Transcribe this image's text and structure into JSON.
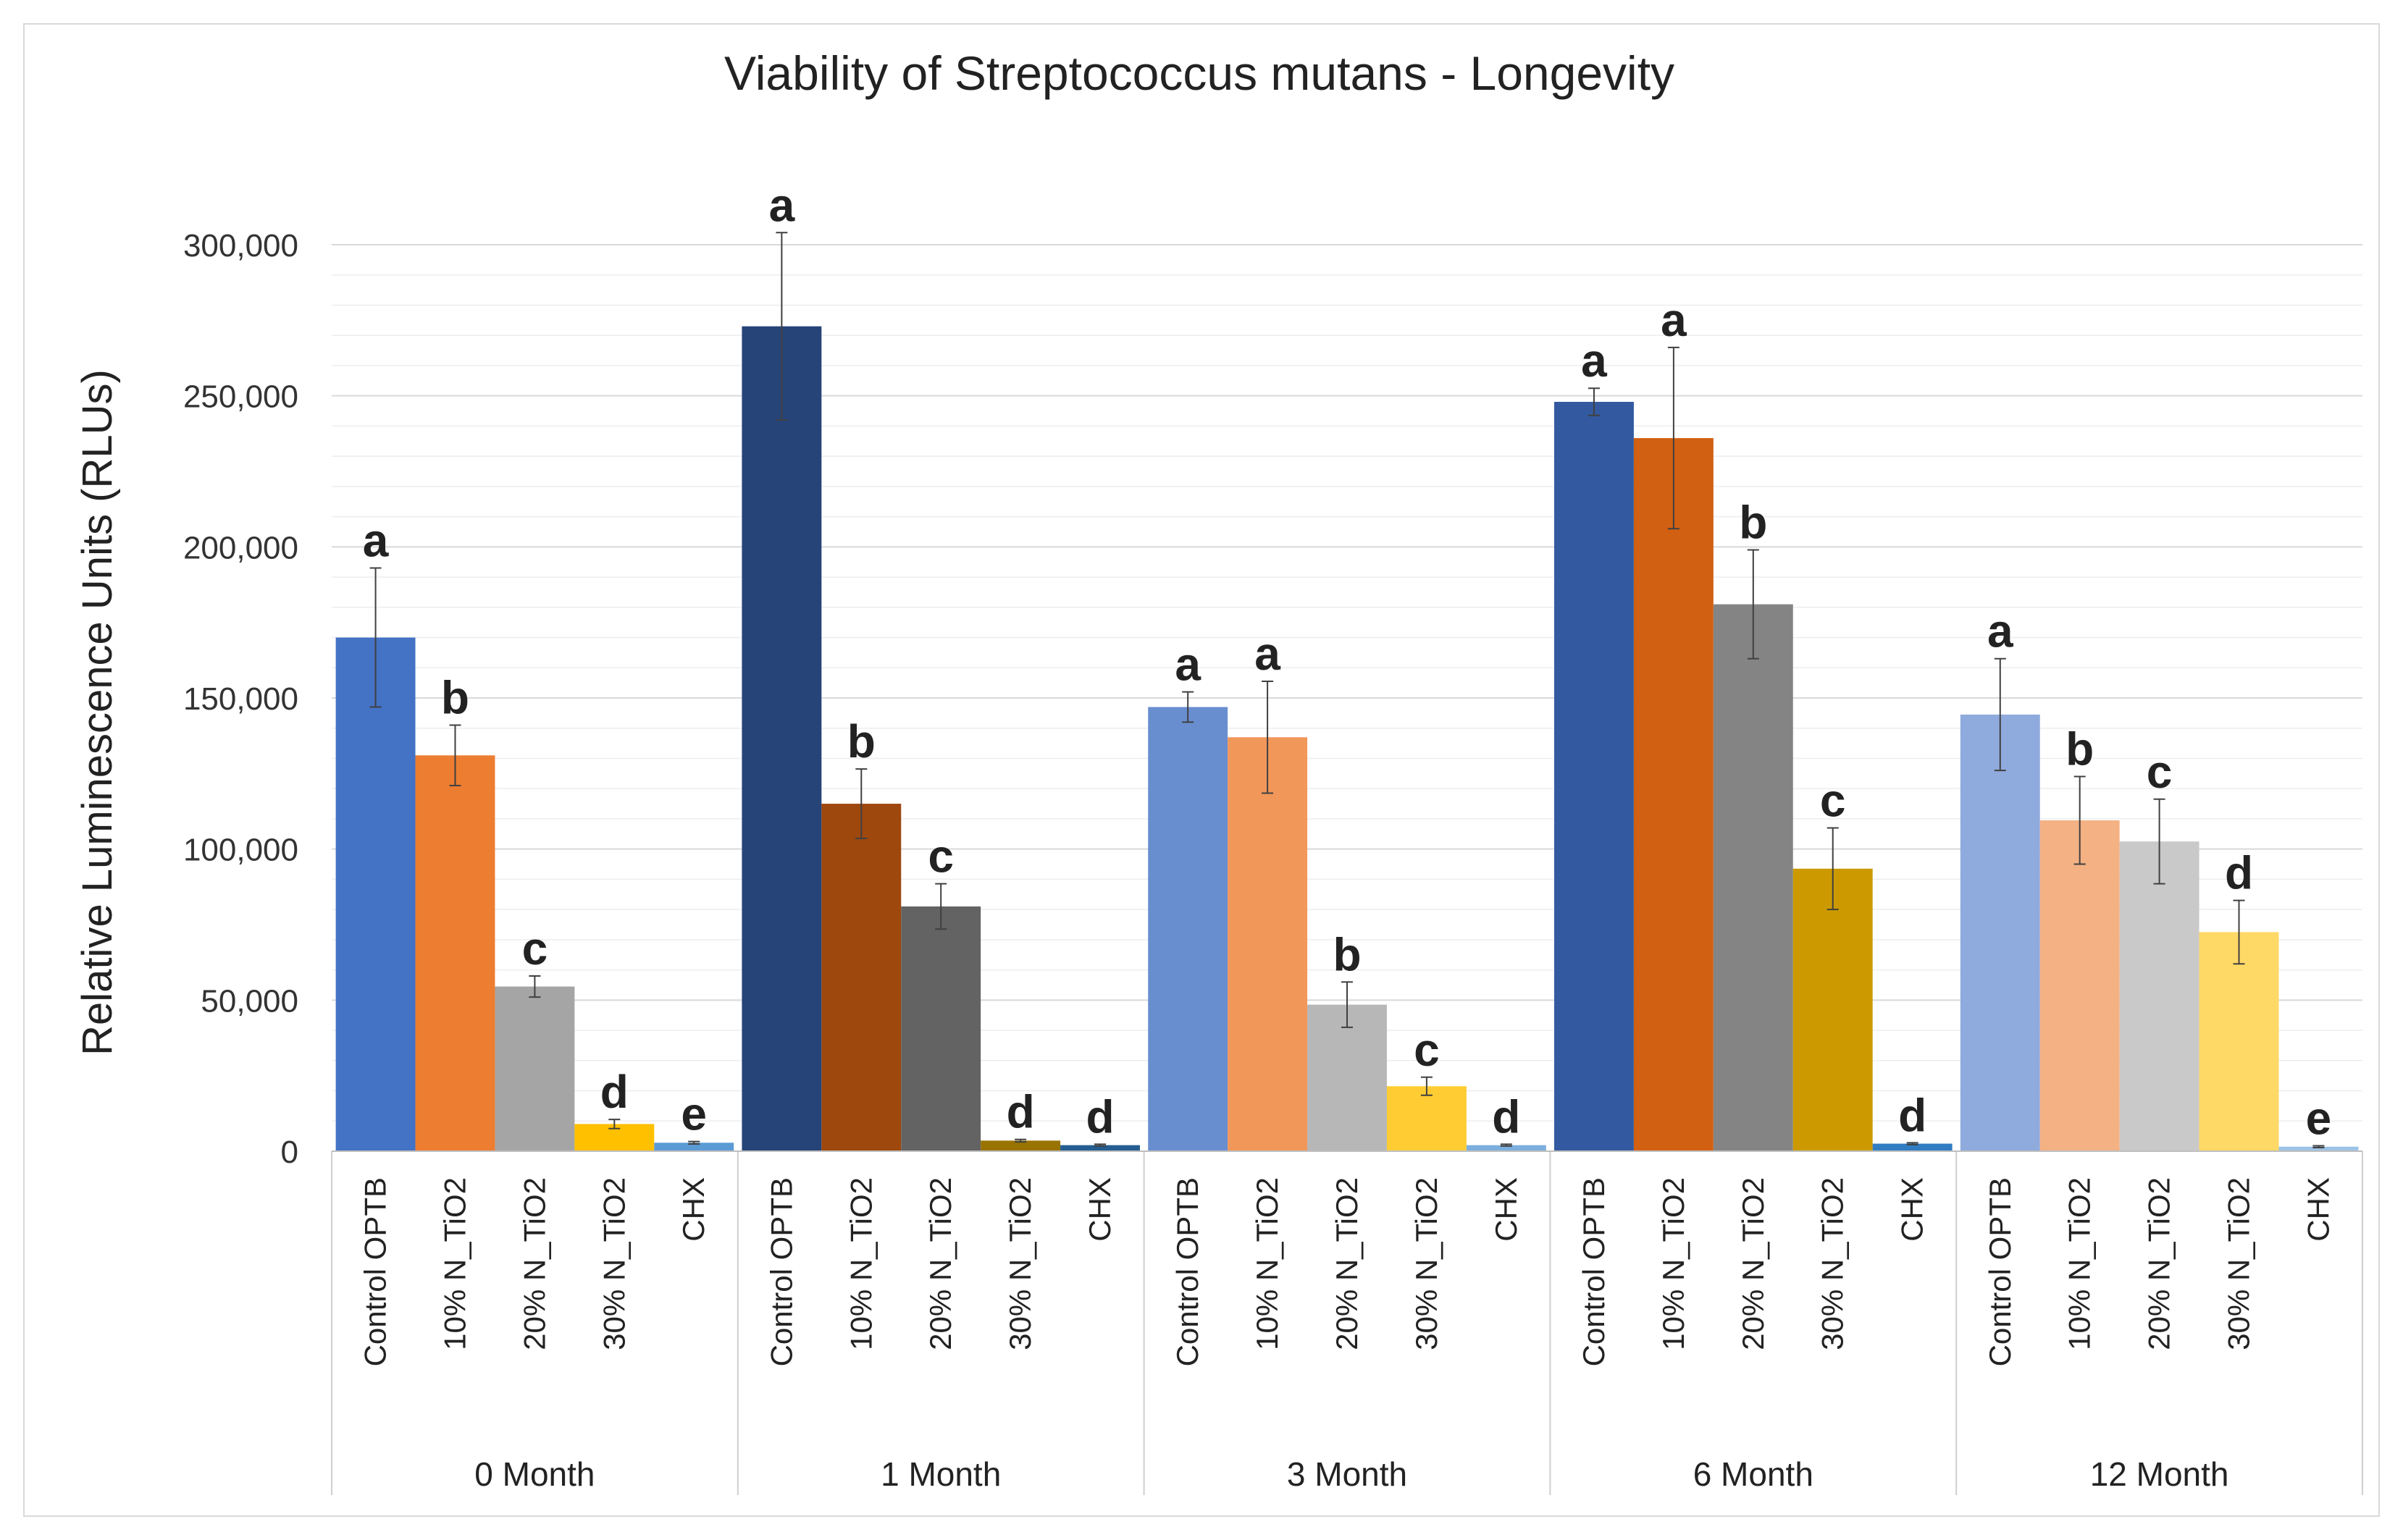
{
  "chart_data": {
    "type": "bar",
    "title": "Viability of Streptococcus mutans - Longevity",
    "ylabel": "Relative Luminescence Units (RLUs)",
    "xlabel": "",
    "ylim": [
      0,
      300000
    ],
    "grid": true,
    "y_ticks": [
      0,
      50000,
      100000,
      150000,
      200000,
      250000,
      300000
    ],
    "y_tick_labels": [
      "0",
      "50,000",
      "100,000",
      "150,000",
      "200,000",
      "250,000",
      "300,000"
    ],
    "groups": [
      {
        "label": "0 Month",
        "bars": [
          {
            "category": "Control OPTB",
            "value": 170000,
            "error": 23000,
            "letter": "a",
            "color": "#4472c4"
          },
          {
            "category": "10% N_TiO2",
            "value": 131000,
            "error": 10000,
            "letter": "b",
            "color": "#ed7d31"
          },
          {
            "category": "20% N_TiO2",
            "value": 54500,
            "error": 3500,
            "letter": "c",
            "color": "#a5a5a5"
          },
          {
            "category": "30% N_TiO2",
            "value": 9000,
            "error": 1500,
            "letter": "d",
            "color": "#ffc000"
          },
          {
            "category": "CHX",
            "value": 2800,
            "error": 400,
            "letter": "e",
            "color": "#5b9bd5"
          }
        ]
      },
      {
        "label": "1 Month",
        "bars": [
          {
            "category": "Control OPTB",
            "value": 273000,
            "error": 31000,
            "letter": "a",
            "color": "#264478"
          },
          {
            "category": "10% N_TiO2",
            "value": 115000,
            "error": 11500,
            "letter": "b",
            "color": "#9e480e"
          },
          {
            "category": "20% N_TiO2",
            "value": 81000,
            "error": 7500,
            "letter": "c",
            "color": "#636363"
          },
          {
            "category": "30% N_TiO2",
            "value": 3500,
            "error": 400,
            "letter": "d",
            "color": "#997300"
          },
          {
            "category": "CHX",
            "value": 2000,
            "error": 300,
            "letter": "d",
            "color": "#255e91"
          }
        ]
      },
      {
        "label": "3 Month",
        "bars": [
          {
            "category": "Control OPTB",
            "value": 147000,
            "error": 5000,
            "letter": "a",
            "color": "#698ed0"
          },
          {
            "category": "10% N_TiO2",
            "value": 137000,
            "error": 18500,
            "letter": "a",
            "color": "#f1975a"
          },
          {
            "category": "20% N_TiO2",
            "value": 48500,
            "error": 7500,
            "letter": "b",
            "color": "#b7b7b7"
          },
          {
            "category": "30% N_TiO2",
            "value": 21500,
            "error": 3000,
            "letter": "c",
            "color": "#ffcd33"
          },
          {
            "category": "CHX",
            "value": 2000,
            "error": 300,
            "letter": "d",
            "color": "#7cafdd"
          }
        ]
      },
      {
        "label": "6 Month",
        "bars": [
          {
            "category": "Control OPTB",
            "value": 248000,
            "error": 4500,
            "letter": "a",
            "color": "#335aa1"
          },
          {
            "category": "10% N_TiO2",
            "value": 236000,
            "error": 30000,
            "letter": "a",
            "color": "#d26012"
          },
          {
            "category": "20% N_TiO2",
            "value": 181000,
            "error": 18000,
            "letter": "b",
            "color": "#848484"
          },
          {
            "category": "30% N_TiO2",
            "value": 93500,
            "error": 13500,
            "letter": "c",
            "color": "#cc9a00"
          },
          {
            "category": "CHX",
            "value": 2500,
            "error": 300,
            "letter": "d",
            "color": "#327dc2"
          }
        ]
      },
      {
        "label": "12 Month",
        "bars": [
          {
            "category": "Control OPTB",
            "value": 144500,
            "error": 18500,
            "letter": "a",
            "color": "#8faadc"
          },
          {
            "category": "10% N_TiO2",
            "value": 109500,
            "error": 14500,
            "letter": "b",
            "color": "#f4b183"
          },
          {
            "category": "20% N_TiO2",
            "value": 102500,
            "error": 14000,
            "letter": "c",
            "color": "#c9c9c9"
          },
          {
            "category": "30% N_TiO2",
            "value": 72500,
            "error": 10500,
            "letter": "d",
            "color": "#ffd966"
          },
          {
            "category": "CHX",
            "value": 1500,
            "error": 300,
            "letter": "e",
            "color": "#9dc3e6"
          }
        ]
      }
    ]
  }
}
